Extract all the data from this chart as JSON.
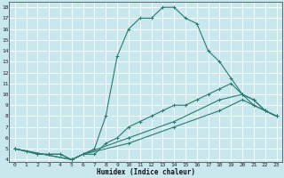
{
  "xlabel": "Humidex (Indice chaleur)",
  "bg_color": "#c8e8ee",
  "line_color": "#2a7a6e",
  "grid_color": "#ffffff",
  "xlim": [
    -0.5,
    23.5
  ],
  "ylim": [
    3.8,
    18.5
  ],
  "xticks": [
    0,
    1,
    2,
    3,
    4,
    5,
    6,
    7,
    8,
    9,
    10,
    11,
    12,
    13,
    14,
    15,
    16,
    17,
    18,
    19,
    20,
    21,
    22,
    23
  ],
  "yticks": [
    4,
    5,
    6,
    7,
    8,
    9,
    10,
    11,
    12,
    13,
    14,
    15,
    16,
    17,
    18
  ],
  "curves": [
    {
      "x": [
        0,
        1,
        2,
        3,
        4,
        5,
        6,
        7,
        8,
        9,
        10,
        11,
        12,
        13,
        14,
        15,
        16,
        17,
        18,
        19,
        20,
        21,
        22,
        23
      ],
      "y": [
        5.0,
        4.8,
        4.5,
        4.5,
        4.5,
        4.0,
        4.5,
        5.0,
        8.0,
        13.5,
        16.0,
        17.0,
        17.0,
        18.0,
        18.0,
        17.0,
        16.5,
        14.0,
        13.0,
        11.5,
        10.0,
        9.5,
        8.5,
        8.0
      ]
    },
    {
      "x": [
        0,
        2,
        3,
        4,
        5,
        6,
        7,
        8,
        9,
        10,
        11,
        12,
        13,
        14,
        15,
        16,
        17,
        18,
        19,
        20,
        21,
        22,
        23
      ],
      "y": [
        5.0,
        4.5,
        4.5,
        4.5,
        4.0,
        4.5,
        4.5,
        5.5,
        6.0,
        7.0,
        7.5,
        8.0,
        8.5,
        9.0,
        9.0,
        9.5,
        10.0,
        10.5,
        11.0,
        10.0,
        9.0,
        8.5,
        8.0
      ]
    },
    {
      "x": [
        0,
        5,
        6,
        10,
        14,
        18,
        20,
        21,
        22,
        23
      ],
      "y": [
        5.0,
        4.0,
        4.5,
        5.5,
        7.0,
        8.5,
        9.5,
        9.0,
        8.5,
        8.0
      ]
    },
    {
      "x": [
        0,
        5,
        6,
        10,
        14,
        18,
        20,
        21,
        22,
        23
      ],
      "y": [
        5.0,
        4.0,
        4.5,
        6.0,
        7.5,
        9.5,
        10.0,
        9.5,
        8.5,
        8.0
      ]
    }
  ]
}
